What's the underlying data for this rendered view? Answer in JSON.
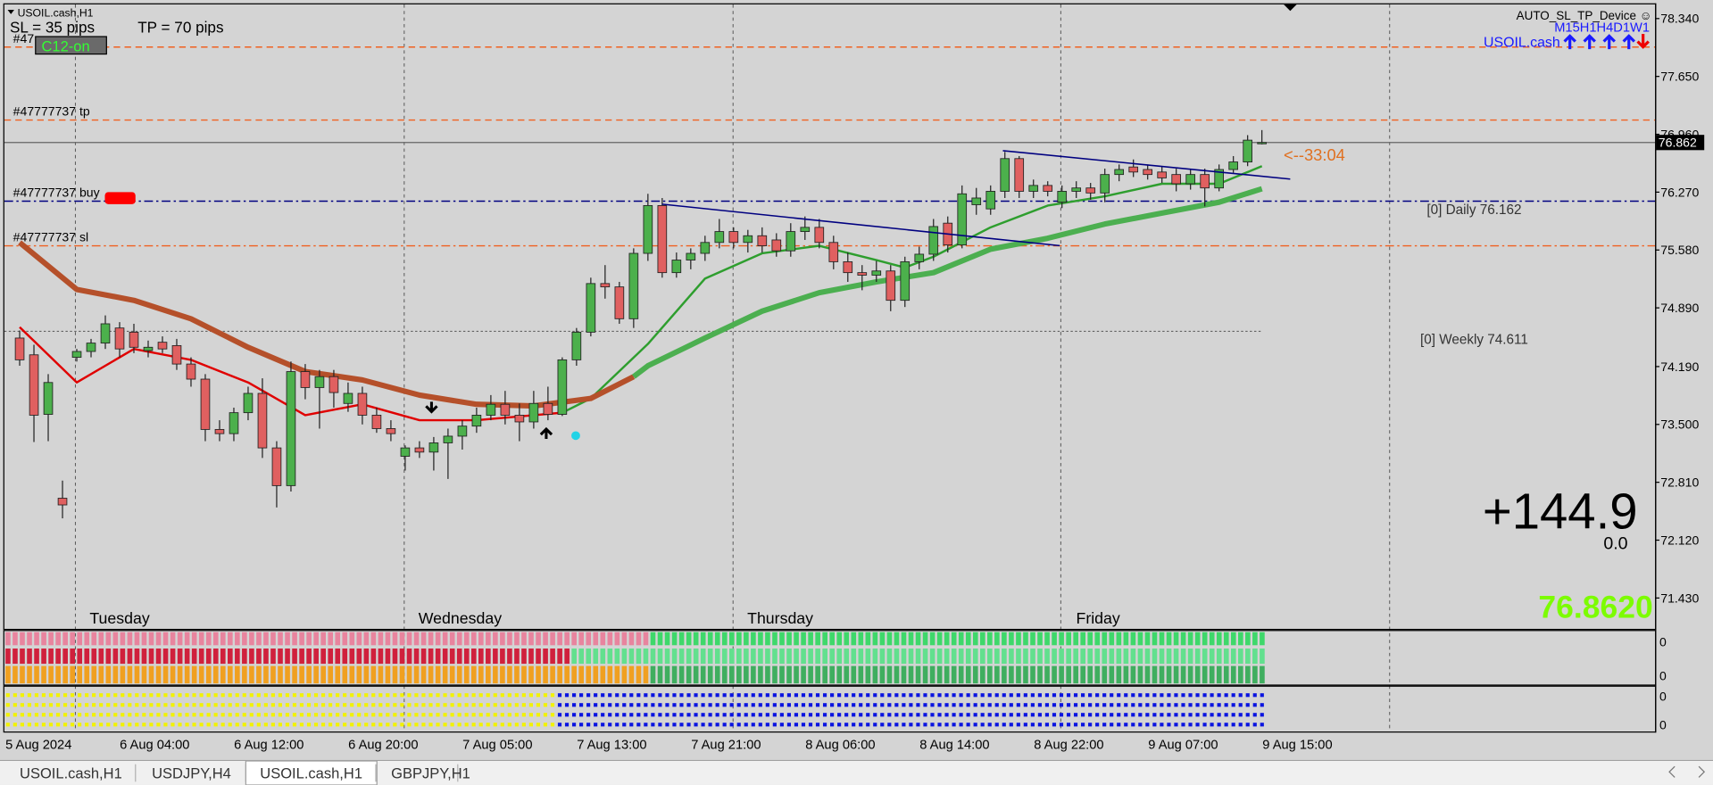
{
  "window": {
    "symbol": "USOIL.cash,H1",
    "sl": "SL = 35 pips",
    "tp": "TP = 70 pips",
    "c12": "C12-on",
    "expert": "AUTO_SL_TP_Device ☺",
    "timeframes": "M15H1H4D1W1",
    "symbol_short": "USOIL.cash",
    "countdown": "<--33:04",
    "profit": "+144.9",
    "profit_sub": "0.0",
    "bid_big": "76.8620",
    "daily": "[0] Daily 76.162",
    "weekly": "[0] Weekly 74.611"
  },
  "chart_data": {
    "type": "candlestick",
    "up_color": "#4cb04c",
    "down_color": "#e06060",
    "ylim": [
      71.062,
      78.509
    ],
    "yticks": [
      {
        "value": 78.34,
        "label": "78.340"
      },
      {
        "value": 77.65,
        "label": "77.650"
      },
      {
        "value": 76.96,
        "label": "76.960"
      },
      {
        "value": 76.27,
        "label": "76.270"
      },
      {
        "value": 75.58,
        "label": "75.580"
      },
      {
        "value": 74.89,
        "label": "74.890"
      },
      {
        "value": 74.19,
        "label": "74.190"
      },
      {
        "value": 73.5,
        "label": "73.500"
      },
      {
        "value": 72.81,
        "label": "72.810"
      },
      {
        "value": 72.12,
        "label": "72.120"
      },
      {
        "value": 71.43,
        "label": "71.430"
      }
    ],
    "last_price": 76.862,
    "open": [
      74.53,
      74.33,
      73.62,
      72.62,
      74.3,
      74.37,
      74.47,
      74.65,
      74.6,
      74.38,
      74.48,
      74.44,
      74.22,
      74.04,
      73.44,
      73.39,
      73.64,
      73.87,
      73.22,
      72.77,
      74.13,
      73.94,
      74.07,
      73.75,
      73.87,
      73.61,
      73.45,
      73.12,
      73.22,
      73.17,
      73.28,
      73.36,
      73.48,
      73.61,
      73.74,
      73.61,
      73.53,
      73.75,
      73.62,
      74.27,
      74.6,
      75.18,
      75.14,
      74.76,
      75.54,
      76.11,
      75.31,
      75.46,
      75.54,
      75.67,
      75.8,
      75.67,
      75.75,
      75.7,
      75.57,
      75.8,
      75.85,
      75.67,
      75.44,
      75.31,
      75.28,
      75.33,
      74.98,
      75.44,
      75.53,
      75.9,
      75.64,
      76.12,
      76.07,
      76.28,
      76.67,
      76.28,
      76.35,
      76.15,
      76.28,
      76.32,
      76.26,
      76.48,
      76.57,
      76.54,
      76.51,
      76.48,
      76.37,
      76.48,
      76.32,
      76.54,
      76.63,
      76.86
    ],
    "high": [
      74.62,
      74.45,
      74.1,
      72.83,
      74.4,
      74.52,
      74.8,
      74.72,
      74.7,
      74.5,
      74.55,
      74.52,
      74.3,
      74.1,
      73.55,
      73.7,
      73.95,
      74.05,
      73.3,
      74.25,
      74.22,
      74.15,
      74.15,
      74.0,
      73.95,
      73.7,
      73.55,
      73.25,
      73.3,
      73.35,
      73.45,
      73.55,
      73.7,
      73.85,
      73.9,
      73.75,
      73.9,
      73.95,
      74.3,
      74.65,
      75.25,
      75.4,
      75.2,
      75.6,
      76.25,
      76.2,
      75.55,
      75.6,
      75.75,
      75.95,
      75.85,
      75.82,
      75.85,
      75.78,
      75.9,
      75.98,
      75.95,
      75.75,
      75.55,
      75.4,
      75.45,
      75.4,
      75.5,
      75.62,
      75.95,
      75.98,
      76.35,
      76.32,
      76.35,
      76.75,
      76.7,
      76.42,
      76.4,
      76.35,
      76.4,
      76.38,
      76.55,
      76.6,
      76.66,
      76.6,
      76.58,
      76.55,
      76.55,
      76.55,
      76.6,
      76.7,
      76.95,
      77.01
    ],
    "low": [
      74.2,
      73.29,
      73.3,
      72.38,
      74.25,
      74.3,
      74.4,
      74.3,
      74.35,
      74.3,
      74.35,
      74.15,
      73.95,
      73.3,
      73.3,
      73.3,
      73.55,
      73.1,
      72.51,
      72.7,
      73.8,
      73.45,
      73.7,
      73.65,
      73.5,
      73.4,
      73.3,
      72.95,
      73.1,
      72.95,
      72.85,
      73.2,
      73.4,
      73.55,
      73.5,
      73.3,
      73.45,
      73.55,
      73.6,
      74.2,
      74.55,
      75.0,
      74.7,
      74.65,
      75.45,
      75.25,
      75.25,
      75.35,
      75.45,
      75.6,
      75.6,
      75.55,
      75.55,
      75.5,
      75.5,
      75.7,
      75.6,
      75.35,
      75.2,
      75.1,
      75.2,
      74.85,
      74.9,
      75.35,
      75.45,
      75.55,
      75.6,
      76.0,
      76.0,
      76.2,
      76.2,
      76.2,
      76.22,
      76.08,
      76.2,
      76.18,
      76.15,
      76.4,
      76.45,
      76.42,
      76.38,
      76.28,
      76.3,
      76.1,
      76.28,
      76.5,
      76.58,
      76.84
    ],
    "close": [
      74.27,
      73.61,
      74.0,
      72.54,
      74.37,
      74.47,
      74.7,
      74.4,
      74.42,
      74.42,
      74.4,
      74.22,
      74.04,
      73.44,
      73.39,
      73.64,
      73.87,
      73.22,
      72.77,
      74.13,
      73.94,
      74.07,
      73.88,
      73.87,
      73.61,
      73.45,
      73.39,
      73.22,
      73.17,
      73.28,
      73.36,
      73.48,
      73.61,
      73.74,
      73.61,
      73.53,
      73.75,
      73.62,
      74.27,
      74.6,
      75.18,
      75.14,
      74.76,
      75.54,
      76.11,
      75.31,
      75.46,
      75.54,
      75.67,
      75.8,
      75.67,
      75.75,
      75.63,
      75.57,
      75.8,
      75.85,
      75.67,
      75.44,
      75.31,
      75.28,
      75.33,
      74.98,
      75.44,
      75.53,
      75.86,
      75.64,
      76.25,
      76.2,
      76.28,
      76.67,
      76.28,
      76.35,
      76.28,
      76.28,
      76.32,
      76.26,
      76.48,
      76.54,
      76.51,
      76.48,
      76.44,
      76.37,
      76.48,
      76.32,
      76.54,
      76.63,
      76.89,
      76.862
    ],
    "series": [
      {
        "color": "#e00000",
        "x": [
          0,
          4,
          8,
          12,
          16,
          20,
          24,
          28,
          32,
          36,
          38
        ],
        "values": [
          74.66,
          74.0,
          74.4,
          74.27,
          74.0,
          73.61,
          73.74,
          73.55,
          73.55,
          73.61,
          73.64
        ]
      },
      {
        "color": "#2e9e2e",
        "x": [
          38,
          40,
          44,
          48,
          52,
          56,
          60,
          62,
          64,
          68,
          72,
          76,
          80,
          84,
          87
        ],
        "values": [
          73.64,
          73.81,
          74.46,
          75.24,
          75.54,
          75.63,
          75.46,
          75.37,
          75.5,
          75.85,
          76.11,
          76.22,
          76.37,
          76.37,
          76.58
        ]
      },
      {
        "color": "#b5502a",
        "x": [
          0,
          4,
          8,
          12,
          16,
          20,
          24,
          28,
          32,
          36,
          40,
          43
        ],
        "values": [
          75.67,
          75.11,
          74.98,
          74.76,
          74.42,
          74.13,
          74.03,
          73.85,
          73.74,
          73.72,
          73.81,
          74.07
        ]
      },
      {
        "color": "#4caf50",
        "x": [
          43,
          44,
          48,
          52,
          56,
          60,
          64,
          68,
          72,
          76,
          80,
          84,
          87
        ],
        "values": [
          74.07,
          74.2,
          74.53,
          74.85,
          75.07,
          75.2,
          75.31,
          75.59,
          75.72,
          75.89,
          76.02,
          76.15,
          76.31
        ]
      }
    ],
    "levels": [
      {
        "label": "#47",
        "value": 78.0,
        "color": "#f06020",
        "style": "dash"
      },
      {
        "label": "#47777737 tp",
        "value": 77.13,
        "color": "#f06020",
        "style": "dash"
      },
      {
        "label": "#47777737 buy",
        "value": 76.162,
        "color": "#000080",
        "style": "dashdot"
      },
      {
        "label": "#47777737 sl",
        "value": 75.63,
        "color": "#f06020",
        "style": "dashdot"
      },
      {
        "value": 74.611,
        "color": "#555555",
        "style": "dot"
      }
    ],
    "day_labels": [
      "Tuesday",
      "Wednesday",
      "Thursday",
      "Friday"
    ],
    "time_labels": [
      "5 Aug 2024",
      "6 Aug 04:00",
      "6 Aug 12:00",
      "6 Aug 20:00",
      "7 Aug 05:00",
      "7 Aug 13:00",
      "7 Aug 21:00",
      "8 Aug 06:00",
      "8 Aug 14:00",
      "8 Aug 22:00",
      "9 Aug 07:00",
      "9 Aug 15:00"
    ]
  },
  "indicator_axis": [
    0,
    0,
    0,
    0
  ],
  "tabs": [
    "USOIL.cash,H1",
    "USDJPY,H4",
    "USOIL.cash,H1",
    "GBPJPY,H1"
  ]
}
